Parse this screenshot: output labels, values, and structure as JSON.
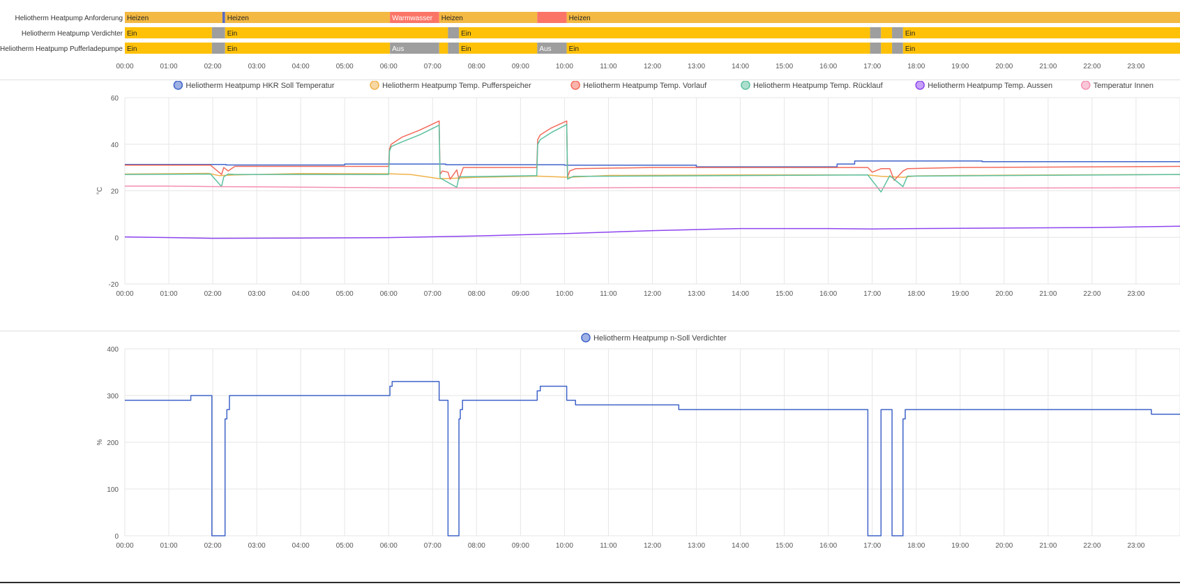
{
  "timeline": {
    "time_labels": [
      "00:00",
      "01:00",
      "02:00",
      "03:00",
      "04:00",
      "05:00",
      "06:00",
      "07:00",
      "08:00",
      "09:00",
      "10:00",
      "11:00",
      "12:00",
      "13:00",
      "14:00",
      "15:00",
      "16:00",
      "17:00",
      "18:00",
      "19:00",
      "20:00",
      "21:00",
      "22:00",
      "23:00"
    ],
    "colors": {
      "Heizen": "#f4b942",
      "Warmwasser": "#fb7567",
      "Ein": "#ffc107",
      "Aus": "#9e9e9e",
      "marker": "#5c6bc0"
    },
    "rows": [
      {
        "label": "Heliotherm Heatpump Anforderung",
        "segments": [
          {
            "from": 0,
            "to": 2.22,
            "state": "Heizen",
            "text": "Heizen"
          },
          {
            "from": 2.22,
            "to": 2.28,
            "state": "marker",
            "text": ""
          },
          {
            "from": 2.28,
            "to": 6.03,
            "state": "Heizen",
            "text": "Heizen"
          },
          {
            "from": 6.03,
            "to": 7.15,
            "state": "Warmwasser",
            "text": "Warmwasser"
          },
          {
            "from": 7.15,
            "to": 9.38,
            "state": "Heizen",
            "text": "Heizen"
          },
          {
            "from": 9.38,
            "to": 10.05,
            "state": "Warmwasser",
            "text": ""
          },
          {
            "from": 10.05,
            "to": 24,
            "state": "Heizen",
            "text": "Heizen"
          }
        ]
      },
      {
        "label": "Heliotherm Heatpump Verdichter",
        "segments": [
          {
            "from": 0,
            "to": 1.98,
            "state": "Ein",
            "text": "Ein"
          },
          {
            "from": 1.98,
            "to": 2.28,
            "state": "Aus",
            "text": ""
          },
          {
            "from": 2.28,
            "to": 7.35,
            "state": "Ein",
            "text": "Ein"
          },
          {
            "from": 7.35,
            "to": 7.6,
            "state": "Aus",
            "text": ""
          },
          {
            "from": 7.6,
            "to": 16.95,
            "state": "Ein",
            "text": "Ein"
          },
          {
            "from": 16.95,
            "to": 17.2,
            "state": "Aus",
            "text": ""
          },
          {
            "from": 17.2,
            "to": 17.45,
            "state": "Ein",
            "text": ""
          },
          {
            "from": 17.45,
            "to": 17.7,
            "state": "Aus",
            "text": ""
          },
          {
            "from": 17.7,
            "to": 24,
            "state": "Ein",
            "text": "Ein"
          }
        ]
      },
      {
        "label": "Heliotherm Heatpump Pufferladepumpe",
        "segments": [
          {
            "from": 0,
            "to": 1.98,
            "state": "Ein",
            "text": "Ein"
          },
          {
            "from": 1.98,
            "to": 2.28,
            "state": "Aus",
            "text": ""
          },
          {
            "from": 2.28,
            "to": 6.03,
            "state": "Ein",
            "text": "Ein"
          },
          {
            "from": 6.03,
            "to": 7.15,
            "state": "Aus",
            "text": "Aus"
          },
          {
            "from": 7.15,
            "to": 7.35,
            "state": "Ein",
            "text": ""
          },
          {
            "from": 7.35,
            "to": 7.6,
            "state": "Aus",
            "text": ""
          },
          {
            "from": 7.6,
            "to": 9.38,
            "state": "Ein",
            "text": "Ein"
          },
          {
            "from": 9.38,
            "to": 10.05,
            "state": "Aus",
            "text": "Aus"
          },
          {
            "from": 10.05,
            "to": 16.95,
            "state": "Ein",
            "text": "Ein"
          },
          {
            "from": 16.95,
            "to": 17.2,
            "state": "Aus",
            "text": ""
          },
          {
            "from": 17.2,
            "to": 17.45,
            "state": "Ein",
            "text": ""
          },
          {
            "from": 17.45,
            "to": 17.7,
            "state": "Aus",
            "text": ""
          },
          {
            "from": 17.7,
            "to": 24,
            "state": "Ein",
            "text": "Ein"
          }
        ]
      }
    ]
  },
  "chart_data": [
    {
      "type": "line",
      "title": "",
      "ylabel": "°C",
      "xlim": [
        0,
        24
      ],
      "ylim": [
        -20,
        60
      ],
      "yticks": [
        -20,
        0,
        20,
        40,
        60
      ],
      "xtick_labels": [
        "00:00",
        "01:00",
        "02:00",
        "03:00",
        "04:00",
        "05:00",
        "06:00",
        "07:00",
        "08:00",
        "09:00",
        "10:00",
        "11:00",
        "12:00",
        "13:00",
        "14:00",
        "15:00",
        "16:00",
        "17:00",
        "18:00",
        "19:00",
        "20:00",
        "21:00",
        "22:00",
        "23:00"
      ],
      "grid": true,
      "legend": "top",
      "series": [
        {
          "name": "Heliotherm Heatpump HKR Soll Temperatur",
          "color": "#3f63c9",
          "step": true,
          "x": [
            0,
            2,
            2.3,
            5,
            7.3,
            10,
            13,
            16.2,
            16.6,
            19.5,
            24
          ],
          "y": [
            31.3,
            31.3,
            31.1,
            31.5,
            31.2,
            31,
            30.3,
            31.5,
            32.8,
            32.5,
            32.5
          ]
        },
        {
          "name": "Heliotherm Heatpump Temp. Pufferspeicher",
          "color": "#f0b24a",
          "x": [
            0,
            1.9,
            2.15,
            2.5,
            4,
            6,
            6.5,
            7.15,
            7.5,
            8,
            9.4,
            10.1,
            11,
            14,
            16.9,
            17.2,
            17.7,
            18,
            20,
            24
          ],
          "y": [
            27.2,
            27.5,
            26.5,
            26.8,
            27.4,
            27.3,
            27,
            25.2,
            25.4,
            25.8,
            26.3,
            25.8,
            26.6,
            26.8,
            26.8,
            26.2,
            25.8,
            26.4,
            26.7,
            27
          ]
        },
        {
          "name": "Heliotherm Heatpump Temp. Vorlauf",
          "color": "#f36a5a",
          "x": [
            0,
            1.95,
            2.2,
            2.25,
            2.35,
            2.5,
            3,
            6,
            6.02,
            6.06,
            6.3,
            6.7,
            7.15,
            7.17,
            7.22,
            7.35,
            7.4,
            7.55,
            7.6,
            7.7,
            9.37,
            9.39,
            9.45,
            9.7,
            10.05,
            10.07,
            10.12,
            10.25,
            12,
            16.9,
            17,
            17.2,
            17.4,
            17.5,
            17.7,
            17.8,
            19,
            21,
            24
          ],
          "y": [
            31,
            31,
            27,
            30,
            28.5,
            30.5,
            30.5,
            30.5,
            38,
            40,
            43,
            46,
            50,
            27,
            28.5,
            28,
            25,
            29,
            25,
            30,
            30,
            42,
            44,
            47,
            50,
            26,
            28.5,
            29.5,
            30,
            30,
            28,
            29.5,
            29.5,
            24.5,
            28.5,
            29.5,
            30,
            30.2,
            30.5
          ]
        },
        {
          "name": "Heliotherm Heatpump Temp. Rücklauf",
          "color": "#5cc0a0",
          "x": [
            0,
            1.95,
            2.2,
            2.25,
            2.35,
            2.5,
            6,
            6.02,
            6.06,
            6.3,
            6.7,
            7.15,
            7.17,
            7.55,
            7.6,
            9.37,
            9.39,
            9.45,
            9.7,
            10.05,
            10.07,
            10.2,
            16.9,
            17.2,
            17.4,
            17.7,
            17.8,
            24
          ],
          "y": [
            27,
            27.2,
            21.8,
            26,
            27.2,
            27,
            27,
            37,
            39,
            41,
            44,
            48.2,
            25.5,
            21.5,
            26,
            26.5,
            40,
            42,
            45,
            48.5,
            25,
            26.2,
            26.8,
            19.5,
            26.5,
            21.8,
            26.3,
            27
          ]
        },
        {
          "name": "Heliotherm Heatpump Temp. Aussen",
          "color": "#8e44f0",
          "x": [
            0,
            2,
            4,
            6,
            8,
            10,
            12,
            14,
            16,
            17,
            18,
            20,
            22,
            24
          ],
          "y": [
            0.2,
            -0.4,
            -0.3,
            -0.1,
            0.6,
            1.6,
            2.9,
            3.8,
            3.8,
            3.6,
            3.8,
            4,
            4.2,
            4.8
          ]
        },
        {
          "name": "Temperatur Innen",
          "color": "#f48fb1",
          "x": [
            0,
            1,
            2,
            4,
            6,
            8,
            10,
            12,
            16,
            20,
            24
          ],
          "y": [
            22,
            22,
            21.8,
            21.6,
            21.3,
            21.2,
            21.2,
            21.4,
            21.2,
            21.2,
            21.3
          ]
        }
      ]
    },
    {
      "type": "line",
      "title": "",
      "ylabel": "%",
      "xlim": [
        0,
        24
      ],
      "ylim": [
        0,
        400
      ],
      "yticks": [
        0,
        100,
        200,
        300,
        400
      ],
      "xtick_labels": [
        "00:00",
        "01:00",
        "02:00",
        "03:00",
        "04:00",
        "05:00",
        "06:00",
        "07:00",
        "08:00",
        "09:00",
        "10:00",
        "11:00",
        "12:00",
        "13:00",
        "14:00",
        "15:00",
        "16:00",
        "17:00",
        "18:00",
        "19:00",
        "20:00",
        "21:00",
        "22:00",
        "23:00"
      ],
      "grid": true,
      "legend": "top",
      "series": [
        {
          "name": "Heliotherm Heatpump n-Soll Verdichter",
          "color": "#3f63c9",
          "step": true,
          "x": [
            0,
            1.5,
            1.98,
            2.28,
            2.32,
            2.38,
            6.03,
            6.08,
            7.15,
            7.35,
            7.6,
            7.63,
            7.68,
            9.38,
            9.45,
            10.05,
            10.25,
            12.6,
            16.9,
            17.2,
            17.45,
            17.7,
            17.75,
            23.35,
            24
          ],
          "y": [
            290,
            300,
            0,
            250,
            270,
            300,
            320,
            330,
            290,
            0,
            250,
            270,
            290,
            310,
            320,
            290,
            280,
            270,
            0,
            270,
            0,
            250,
            270,
            260,
            260
          ]
        }
      ]
    }
  ]
}
